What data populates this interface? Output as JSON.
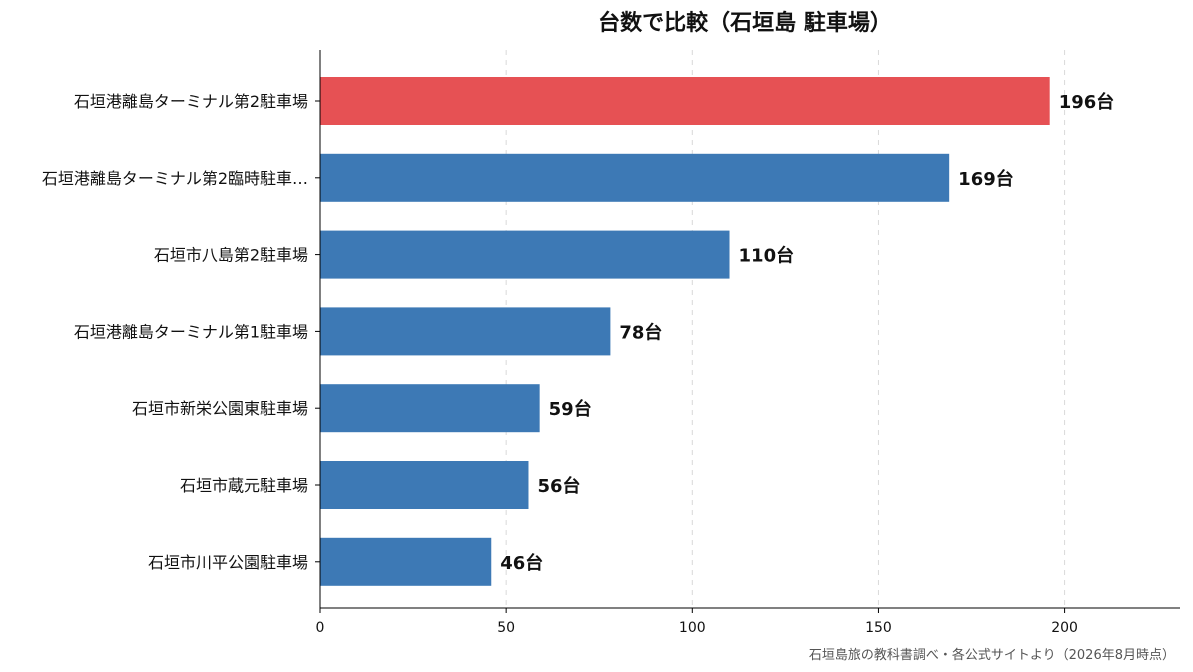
{
  "chart_data": {
    "type": "bar",
    "orientation": "horizontal",
    "title": "台数で比較（石垣島 駐車場）",
    "categories": [
      "石垣港離島ターミナル第2駐車場",
      "石垣港離島ターミナル第2臨時駐車…",
      "石垣市八島第2駐車場",
      "石垣港離島ターミナル第1駐車場",
      "石垣市新栄公園東駐車場",
      "石垣市蔵元駐車場",
      "石垣市川平公園駐車場"
    ],
    "values": [
      196,
      169,
      110,
      78,
      59,
      56,
      46
    ],
    "value_labels": [
      "196台",
      "169台",
      "110台",
      "78台",
      "59台",
      "56台",
      "46台"
    ],
    "bar_colors": [
      "#e65154",
      "#3d79b5",
      "#3d79b5",
      "#3d79b5",
      "#3d79b5",
      "#3d79b5",
      "#3d79b5"
    ],
    "xlim": [
      0,
      231
    ],
    "xticks": [
      0,
      50,
      100,
      150,
      200
    ],
    "xtick_labels": [
      "0",
      "50",
      "100",
      "150",
      "200"
    ],
    "xlabel": "",
    "ylabel": "",
    "grid": "vertical dashed",
    "legend": "none"
  },
  "source_note": "石垣島旅の教科書調べ・各公式サイトより（2026年8月時点）"
}
